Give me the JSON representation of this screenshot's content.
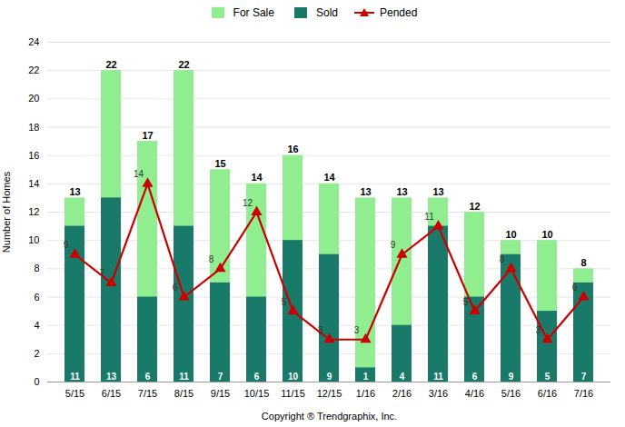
{
  "chart_data": {
    "type": "bar",
    "categories": [
      "5/15",
      "6/15",
      "7/15",
      "8/15",
      "9/15",
      "10/15",
      "11/15",
      "12/15",
      "1/16",
      "2/16",
      "3/16",
      "4/16",
      "5/16",
      "6/16",
      "7/16"
    ],
    "series": [
      {
        "name": "For Sale",
        "type": "bar",
        "color": "#90ee90",
        "values": [
          13,
          22,
          17,
          22,
          15,
          14,
          16,
          14,
          13,
          13,
          13,
          12,
          10,
          10,
          8
        ]
      },
      {
        "name": "Sold",
        "type": "bar",
        "color": "#1a7a6a",
        "values": [
          11,
          13,
          6,
          11,
          7,
          6,
          10,
          9,
          1,
          4,
          11,
          6,
          9,
          5,
          7
        ]
      },
      {
        "name": "Pended",
        "type": "line",
        "color": "#cc0000",
        "marker": "triangle",
        "values": [
          9,
          7,
          14,
          6,
          8,
          12,
          5,
          3,
          3,
          9,
          11,
          5,
          8,
          3,
          6
        ]
      }
    ],
    "xlabel": "Copyright ® Trendgraphix, Inc.",
    "ylabel": "Number of Homes",
    "ylim": [
      0,
      24
    ],
    "yticks": [
      0,
      2,
      4,
      6,
      8,
      10,
      12,
      14,
      16,
      18,
      20,
      22,
      24
    ],
    "grid": true,
    "legend": "top",
    "data_labels": true
  }
}
